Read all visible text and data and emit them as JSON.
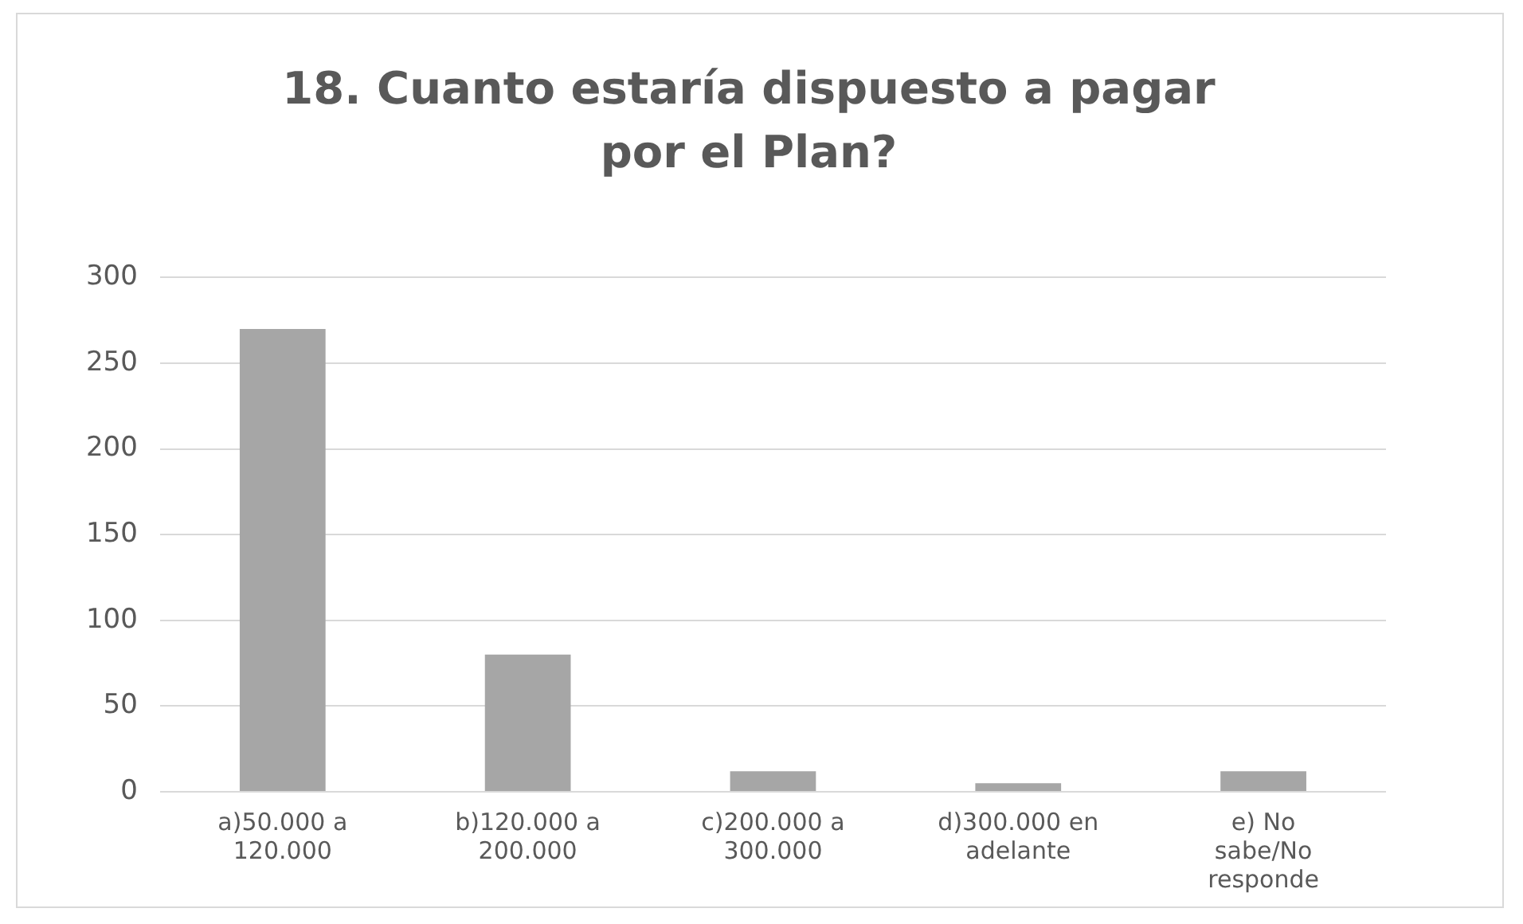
{
  "chart_data": {
    "type": "bar",
    "title": "18. Cuanto estaría dispuesto a pagar por el Plan?",
    "categories": [
      "a)50.000 a 120.000",
      "b)120.000 a 200.000",
      "c)200.000 a 300.000",
      "d)300.000 en adelante",
      "e) No sabe/No responde"
    ],
    "values": [
      270,
      80,
      12,
      5,
      12
    ],
    "color": "#a6a6a6",
    "ylim": [
      0,
      300
    ],
    "yticks": [
      0,
      50,
      100,
      150,
      200,
      250,
      300
    ],
    "grid": "y"
  }
}
